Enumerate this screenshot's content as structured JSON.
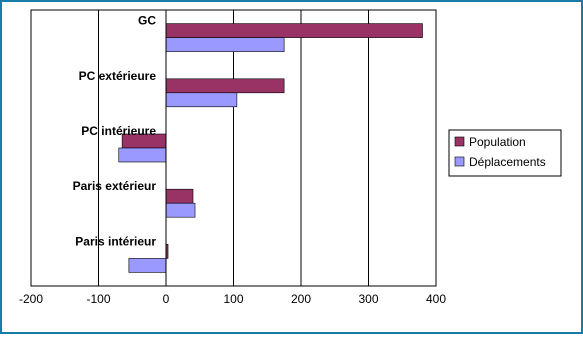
{
  "chart_data": {
    "type": "bar",
    "orientation": "horizontal",
    "categories": [
      "GC",
      "PC extérieure",
      "PC intérieure",
      "Paris extérieur",
      "Paris intérieur"
    ],
    "series": [
      {
        "name": "Population",
        "color": "#993366",
        "values": [
          380,
          175,
          -65,
          40,
          3
        ]
      },
      {
        "name": "Déplacements",
        "color": "#9999ff",
        "values": [
          175,
          105,
          -70,
          43,
          -55
        ]
      }
    ],
    "xlim": [
      -200,
      400
    ],
    "xticks": [
      "-200",
      "-100",
      "0",
      "100",
      "200",
      "300",
      "400"
    ],
    "grid": "vertical",
    "legend_position": "right",
    "frame_color": "#1a7aa8"
  }
}
